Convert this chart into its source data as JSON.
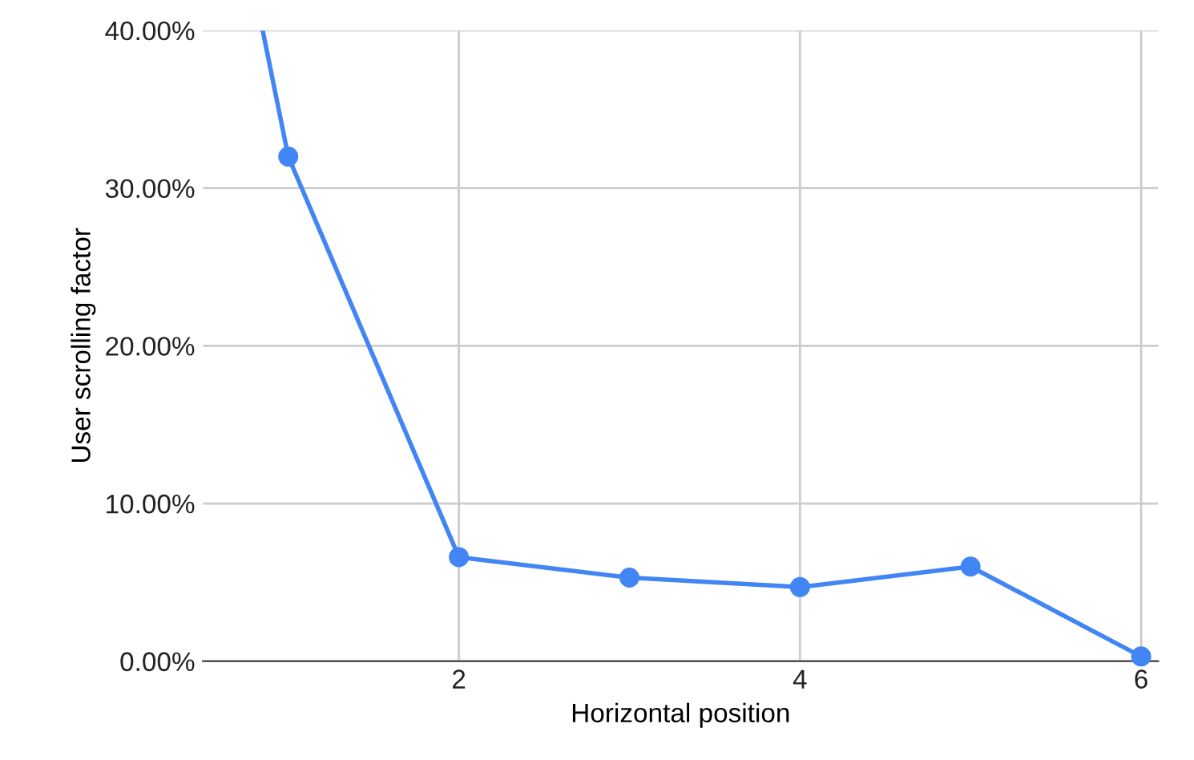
{
  "chart_data": {
    "type": "line",
    "xlabel": "Horizontal position",
    "ylabel": "User scrolling factor",
    "xlim": [
      0.5,
      6.1
    ],
    "xticks": [
      2,
      4,
      6
    ],
    "ylim": [
      0,
      40
    ],
    "yticks": [
      {
        "value": 0,
        "label": "0.00%"
      },
      {
        "value": 10,
        "label": "10.00%"
      },
      {
        "value": 20,
        "label": "20.00%"
      },
      {
        "value": 30,
        "label": "30.00%"
      },
      {
        "value": 40,
        "label": "40.00%"
      }
    ],
    "series": [
      {
        "color": "#4285f4",
        "x": [
          0.85,
          1
        ],
        "values": [
          40,
          32
        ]
      },
      {
        "color": "#4285f4",
        "x": [
          1,
          2,
          3,
          4,
          5,
          6
        ],
        "values": [
          32,
          6.6,
          5.3,
          4.7,
          6.0,
          0.3
        ],
        "marker": "circle"
      }
    ],
    "grid": true,
    "legend": false,
    "line_style": "solid"
  }
}
